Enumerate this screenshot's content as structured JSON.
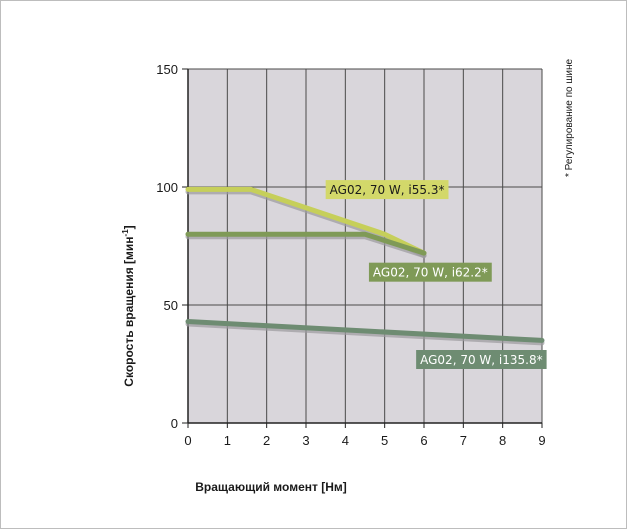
{
  "chart_data": {
    "type": "line",
    "xlabel": "Вращающий момент [Нм]",
    "ylabel": "Скорость вращения [мин",
    "ylabel_superscript": "-1",
    "ylabel_suffix": "]",
    "note": "* Регулирование по шине",
    "xlim": [
      0,
      9
    ],
    "ylim": [
      0,
      150
    ],
    "x_ticks": [
      0,
      1,
      2,
      3,
      4,
      5,
      6,
      7,
      8,
      9
    ],
    "y_ticks": [
      0,
      50,
      100,
      150
    ],
    "grid": true,
    "plot_background": "#d9d6db",
    "series": [
      {
        "name": "AG02, 70 W, i55.3*",
        "color": "#c6cf5a",
        "label_bg": "#d3d86a",
        "label_fg": "#1a1a1a",
        "x": [
          0,
          1.6,
          5,
          6
        ],
        "y": [
          99,
          99,
          80,
          72
        ]
      },
      {
        "name": "AG02, 70 W, i62.2*",
        "color": "#7f9a57",
        "label_bg": "#7f9a57",
        "label_fg": "#ffffff",
        "x": [
          0,
          4.5,
          6
        ],
        "y": [
          80,
          80,
          72
        ]
      },
      {
        "name": "AG02, 70 W, i135.8*",
        "color": "#6e8c72",
        "label_bg": "#6e8c72",
        "label_fg": "#ffffff",
        "x": [
          0,
          9
        ],
        "y": [
          43,
          35
        ]
      }
    ]
  }
}
